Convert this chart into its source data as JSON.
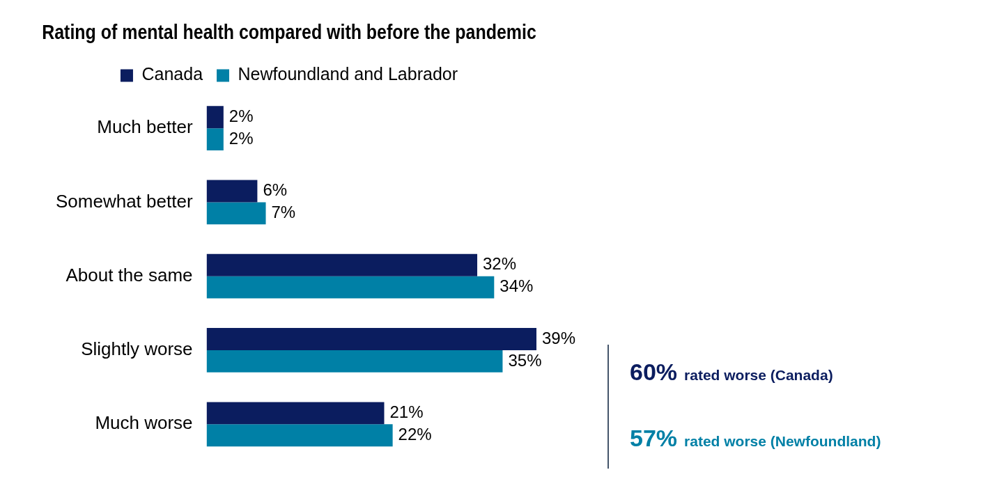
{
  "chart_data": {
    "type": "bar",
    "orientation": "horizontal",
    "title": "Rating of mental health compared with before the pandemic",
    "categories": [
      "Much better",
      "Somewhat better",
      "About the same",
      "Slightly worse",
      "Much worse"
    ],
    "series": [
      {
        "name": "Canada",
        "color": "#0b1d5f",
        "values": [
          2,
          6,
          32,
          39,
          21
        ],
        "value_labels": [
          "2%",
          "6%",
          "32%",
          "39%",
          "21%"
        ]
      },
      {
        "name": "Newfoundland and Labrador",
        "color": "#0080a6",
        "values": [
          2,
          7,
          34,
          35,
          22
        ],
        "value_labels": [
          "2%",
          "7%",
          "34%",
          "35%",
          "22%"
        ]
      }
    ],
    "legend": "top",
    "grid": false,
    "tick_labels": "y",
    "annotations": [
      "60% rated worse (Canada)",
      "57% rated worse (Newfoundland)"
    ]
  }
}
